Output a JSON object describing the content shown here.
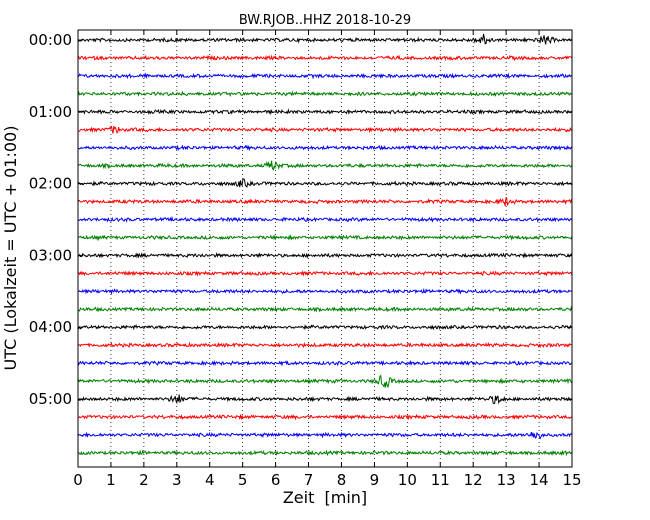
{
  "chart_data": {
    "type": "line",
    "title": "BW.RJOB..HHZ 2018-10-29",
    "xlabel": "Zeit  [min]",
    "ylabel": "UTC (Lokalzeit = UTC + 01:00)",
    "xlim": [
      0,
      15
    ],
    "x_ticks": [
      "0",
      "1",
      "2",
      "3",
      "4",
      "5",
      "6",
      "7",
      "8",
      "9",
      "10",
      "11",
      "12",
      "13",
      "14",
      "15"
    ],
    "y_tick_labels": [
      "00:00",
      "01:00",
      "02:00",
      "03:00",
      "04:00",
      "05:00"
    ],
    "grid": "vertical dotted",
    "trace_count": 24,
    "trace_interval_minutes": 15,
    "trace_colors": [
      "#000000",
      "#ff0000",
      "#0000ff",
      "#008000"
    ],
    "event_bursts": [
      {
        "trace": 0,
        "x": 12.3,
        "amp": 1.5
      },
      {
        "trace": 0,
        "x": 14.2,
        "amp": 1.2
      },
      {
        "trace": 5,
        "x": 1.1,
        "amp": 1.0
      },
      {
        "trace": 7,
        "x": 5.9,
        "amp": 1.3
      },
      {
        "trace": 8,
        "x": 5.0,
        "amp": 1.1
      },
      {
        "trace": 9,
        "x": 13.0,
        "amp": 1.0
      },
      {
        "trace": 19,
        "x": 9.3,
        "amp": 1.8
      },
      {
        "trace": 20,
        "x": 3.0,
        "amp": 1.2
      },
      {
        "trace": 20,
        "x": 12.7,
        "amp": 1.1
      },
      {
        "trace": 22,
        "x": 13.9,
        "amp": 1.2
      }
    ]
  }
}
